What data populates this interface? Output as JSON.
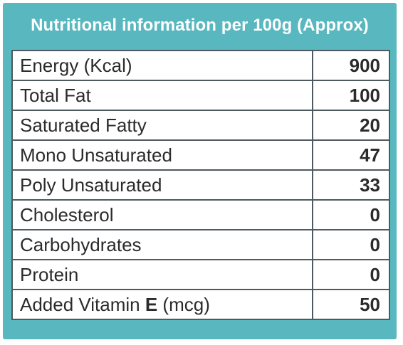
{
  "table": {
    "title": "Nutritional information per 100g (Approx)",
    "rows": [
      {
        "label": "Energy (Kcal)",
        "value": "900"
      },
      {
        "label": "Total Fat",
        "value": "100"
      },
      {
        "label": "Saturated Fatty",
        "value": "20"
      },
      {
        "label": "Mono Unsaturated",
        "value": "47"
      },
      {
        "label": "Poly Unsaturated",
        "value": "33"
      },
      {
        "label": "Cholesterol",
        "value": "0"
      },
      {
        "label": "Carbohydrates",
        "value": "0"
      },
      {
        "label": "Protein",
        "value": "0"
      },
      {
        "label_prefix": "Added Vitamin ",
        "label_bold": "E",
        "label_suffix": " (mcg)",
        "value": "50"
      }
    ]
  },
  "colors": {
    "header_bg": "#58b7bf",
    "border": "#4d5a5f"
  }
}
